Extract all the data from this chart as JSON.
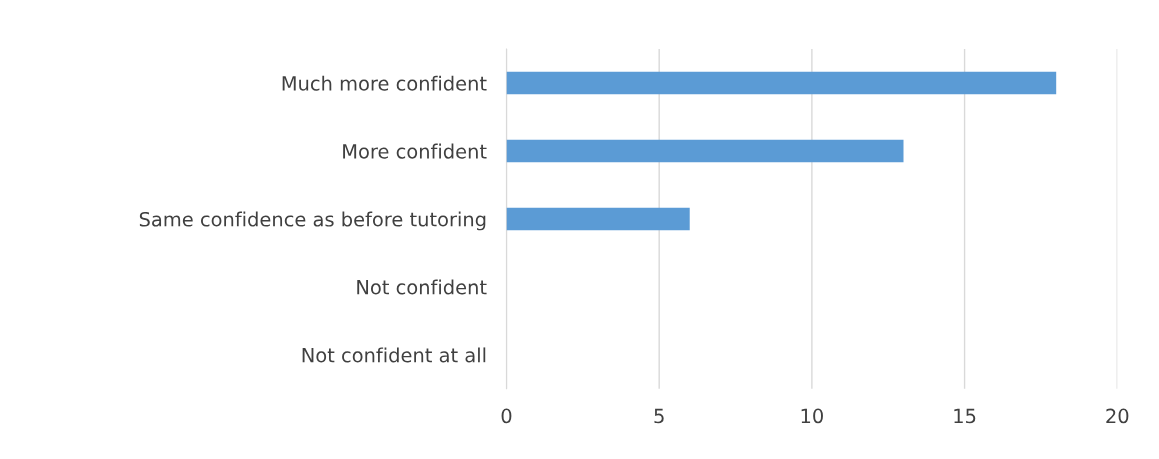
{
  "chart_data": {
    "type": "bar",
    "orientation": "horizontal",
    "categories": [
      "Much more confident",
      "More confident",
      "Same confidence as before tutoring",
      "Not confident",
      "Not confident at all"
    ],
    "values": [
      18,
      13,
      6,
      0,
      0
    ],
    "color": "#5b9bd5",
    "xlim": [
      0,
      20
    ],
    "xticks": [
      0,
      5,
      10,
      15,
      20
    ],
    "grid": "x"
  }
}
